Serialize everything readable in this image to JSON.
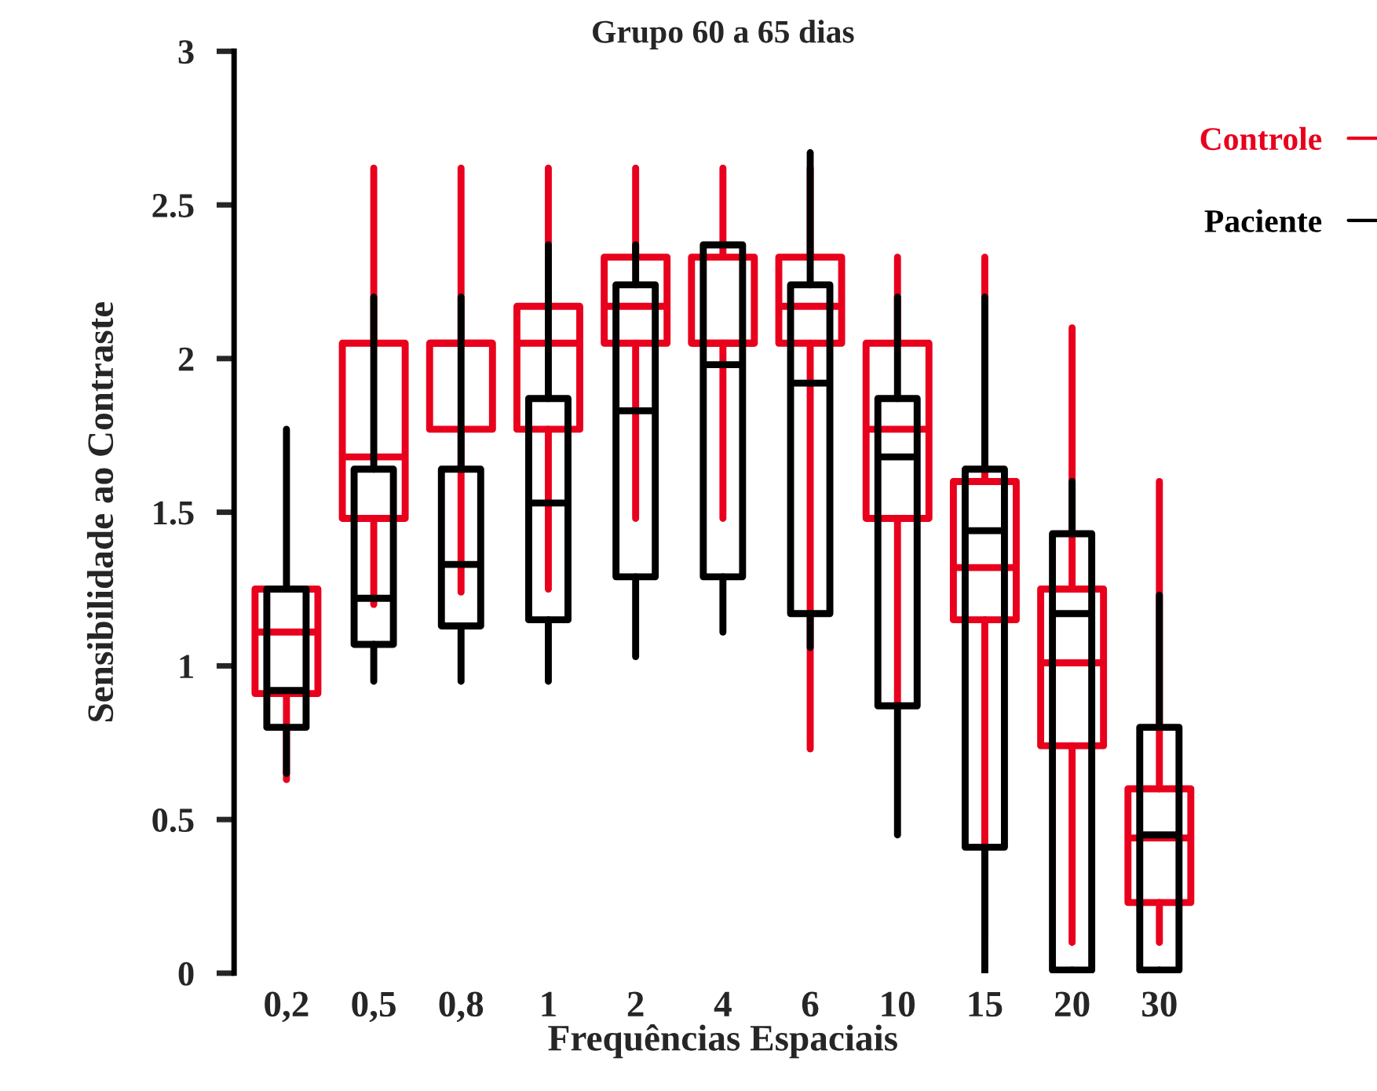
{
  "chart_data": {
    "type": "box",
    "title": "Grupo 60 a 65 dias",
    "xlabel": "Frequências Espaciais",
    "ylabel": "Sensibilidade ao Contraste",
    "categories": [
      "0,2",
      "0,5",
      "0,8",
      "1",
      "2",
      "4",
      "6",
      "10",
      "15",
      "20",
      "30"
    ],
    "ylim": [
      0,
      3
    ],
    "yticks": [
      0,
      0.5,
      1,
      1.5,
      2,
      2.5,
      3
    ],
    "grid": false,
    "legend": "top right",
    "series": [
      {
        "name": "Controle",
        "color": "#e8001c",
        "boxes": [
          {
            "low": 0.63,
            "q1": 0.91,
            "median": 1.11,
            "q3": 1.25,
            "high": 1.25
          },
          {
            "low": 1.2,
            "q1": 1.48,
            "median": 1.68,
            "q3": 2.05,
            "high": 2.62
          },
          {
            "low": 1.24,
            "q1": 1.77,
            "median": 2.05,
            "q3": 2.05,
            "high": 2.62
          },
          {
            "low": 1.25,
            "q1": 1.77,
            "median": 2.05,
            "q3": 2.17,
            "high": 2.62
          },
          {
            "low": 1.48,
            "q1": 2.05,
            "median": 2.17,
            "q3": 2.33,
            "high": 2.62
          },
          {
            "low": 1.48,
            "q1": 2.05,
            "median": 2.05,
            "q3": 2.33,
            "high": 2.62
          },
          {
            "low": 0.73,
            "q1": 2.05,
            "median": 2.17,
            "q3": 2.33,
            "high": 2.62
          },
          {
            "low": 0.87,
            "q1": 1.48,
            "median": 1.77,
            "q3": 2.05,
            "high": 2.33
          },
          {
            "low": 0.12,
            "q1": 1.15,
            "median": 1.32,
            "q3": 1.6,
            "high": 2.33
          },
          {
            "low": 0.1,
            "q1": 0.74,
            "median": 1.01,
            "q3": 1.25,
            "high": 2.1
          },
          {
            "low": 0.1,
            "q1": 0.23,
            "median": 0.44,
            "q3": 0.6,
            "high": 1.6
          }
        ]
      },
      {
        "name": "Paciente",
        "color": "#000000",
        "boxes": [
          {
            "low": 0.65,
            "q1": 0.8,
            "median": 0.92,
            "q3": 1.25,
            "high": 1.77
          },
          {
            "low": 0.95,
            "q1": 1.07,
            "median": 1.22,
            "q3": 1.64,
            "high": 2.2
          },
          {
            "low": 0.95,
            "q1": 1.13,
            "median": 1.33,
            "q3": 1.64,
            "high": 2.2
          },
          {
            "low": 0.95,
            "q1": 1.15,
            "median": 1.53,
            "q3": 1.87,
            "high": 2.37
          },
          {
            "low": 1.03,
            "q1": 1.29,
            "median": 1.83,
            "q3": 2.24,
            "high": 2.37
          },
          {
            "low": 1.11,
            "q1": 1.29,
            "median": 1.98,
            "q3": 2.37,
            "high": 2.37
          },
          {
            "low": 1.06,
            "q1": 1.17,
            "median": 1.92,
            "q3": 2.24,
            "high": 2.67
          },
          {
            "low": 0.45,
            "q1": 0.87,
            "median": 1.68,
            "q3": 1.87,
            "high": 2.2
          },
          {
            "low": 0,
            "q1": 0.41,
            "median": 1.44,
            "q3": 1.64,
            "high": 2.2
          },
          {
            "low": 0,
            "q1": 0.01,
            "median": 1.17,
            "q3": 1.43,
            "high": 1.6
          },
          {
            "low": 0.01,
            "q1": 0.01,
            "median": 0.45,
            "q3": 0.8,
            "high": 1.23
          }
        ]
      }
    ]
  }
}
